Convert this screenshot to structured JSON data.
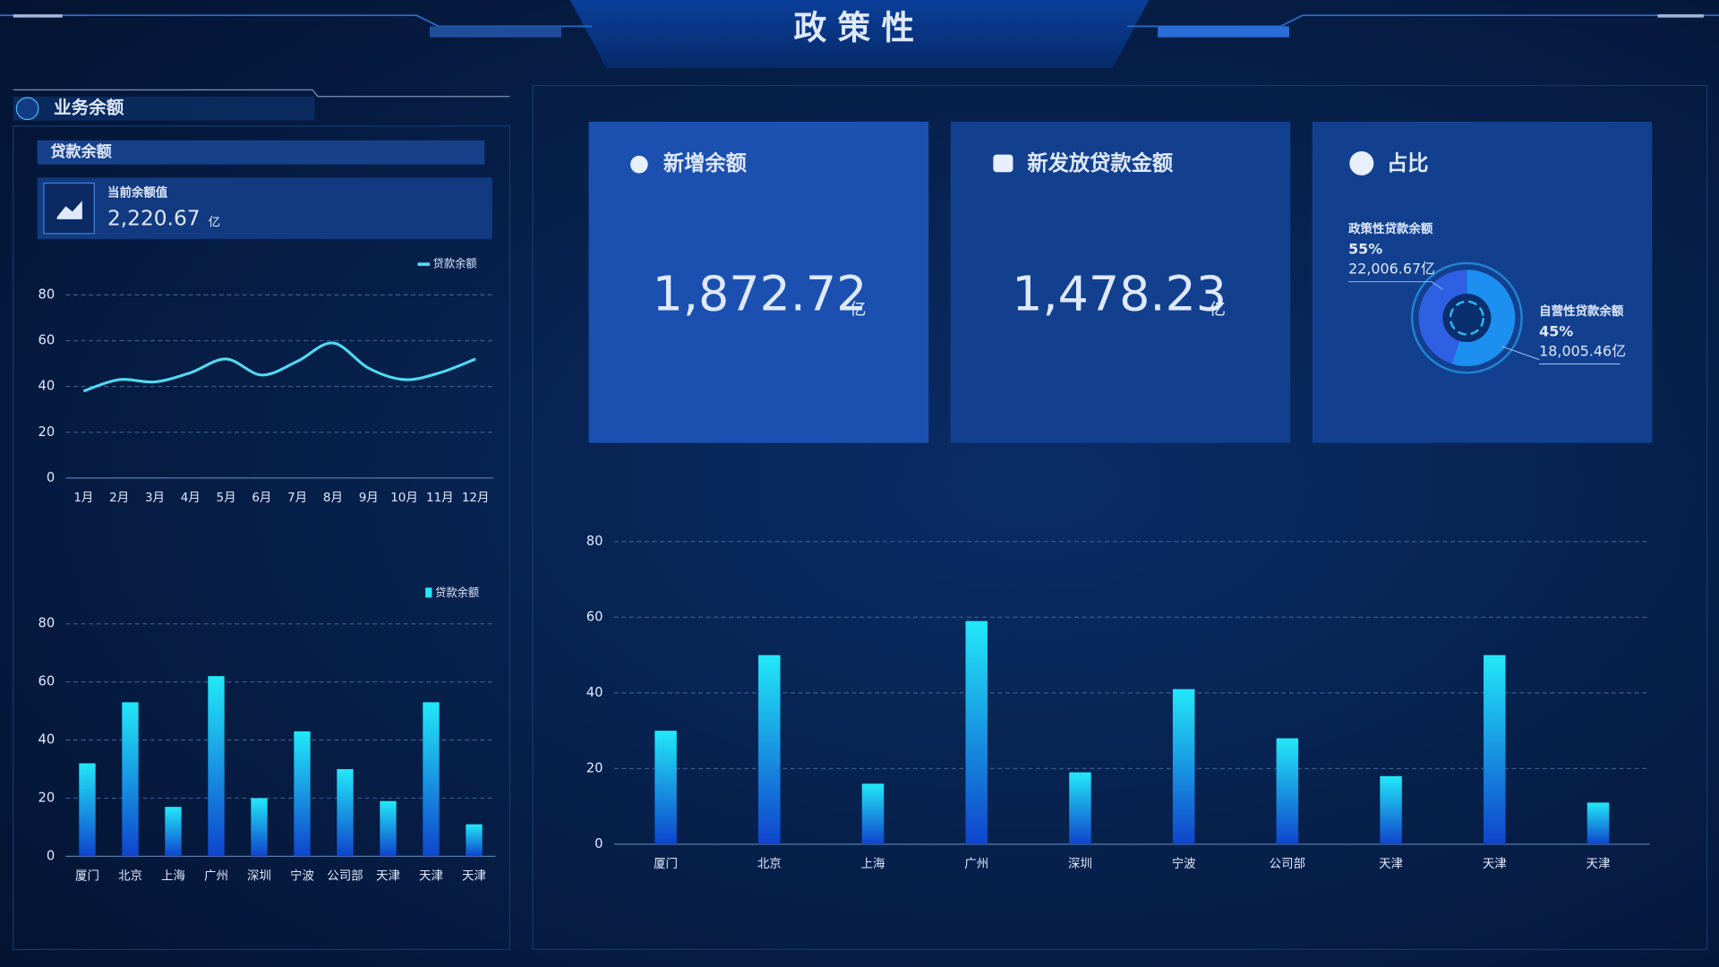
{
  "header": {
    "title": "政策性"
  },
  "left_panel": {
    "title": "业务余额",
    "subtitle": "贷款余额",
    "current_label": "当前余额值",
    "current_value": "2,220.67",
    "current_unit": "亿",
    "line_chart": {
      "type": "line",
      "categories": [
        "1月",
        "2月",
        "3月",
        "4月",
        "5月",
        "6月",
        "7月",
        "8月",
        "9月",
        "10月",
        "11月",
        "12月"
      ],
      "series": [
        {
          "name": "贷款余额",
          "color": "#4fdcf5",
          "values": [
            38,
            43,
            42,
            46,
            52,
            45,
            51,
            59,
            48,
            43,
            46,
            52
          ]
        }
      ],
      "ylim": [
        0,
        80
      ],
      "yticks": [
        0,
        20,
        40,
        60,
        80
      ],
      "grid": true,
      "smooth": true,
      "legend": "top-right"
    },
    "bar_chart": {
      "type": "bar",
      "categories": [
        "厦门",
        "北京",
        "上海",
        "广州",
        "深圳",
        "宁波",
        "公司部",
        "天津",
        "天津",
        "天津"
      ],
      "series": [
        {
          "name": "贷款余额",
          "color": "#22e8f8",
          "values": [
            32,
            53,
            17,
            62,
            20,
            43,
            30,
            19,
            53,
            11
          ]
        }
      ],
      "ylim": [
        0,
        80
      ],
      "yticks": [
        0,
        20,
        40,
        60,
        80
      ],
      "grid": true,
      "legend": "top-right"
    }
  },
  "cards": [
    {
      "title": "新增余额",
      "value": "1,872.72",
      "unit": "亿"
    },
    {
      "title": "新发放贷款金额",
      "value": "1,478.23",
      "unit": "亿"
    }
  ],
  "share_card": {
    "title": "占比",
    "chart": {
      "type": "donut",
      "categories": [
        "政策性贷款余额",
        "自营性贷款余额"
      ],
      "values": [
        55,
        45
      ],
      "value_labels": [
        "55%",
        "45%"
      ],
      "amounts": [
        "22,006.67亿",
        "18,005.46亿"
      ],
      "colors": [
        "#1c8ff0",
        "#2f5fe3"
      ]
    }
  },
  "main_chart": {
    "type": "bar",
    "categories": [
      "厦门",
      "北京",
      "上海",
      "广州",
      "深圳",
      "宁波",
      "公司部",
      "天津",
      "天津",
      "天津"
    ],
    "series": [
      {
        "name": "贷款余额",
        "color": "#22e8f8",
        "values": [
          30,
          50,
          16,
          59,
          19,
          41,
          28,
          18,
          50,
          11
        ]
      }
    ],
    "ylim": [
      0,
      80
    ],
    "yticks": [
      0,
      20,
      40,
      60,
      80
    ],
    "grid": true,
    "legend": false
  }
}
